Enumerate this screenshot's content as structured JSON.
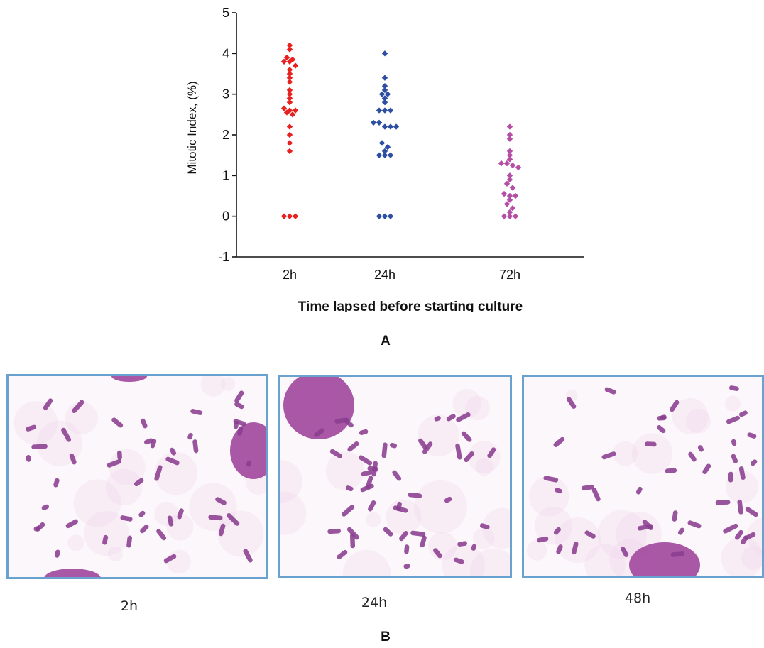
{
  "chart_data": {
    "type": "scatter",
    "title": "",
    "xlabel": "Time lapsed before starting culture",
    "ylabel": "Mitotic Index, (%)",
    "ylim": [
      -1,
      5
    ],
    "yticks": [
      -1,
      0,
      1,
      2,
      3,
      4,
      5
    ],
    "categories": [
      "2h",
      "24h",
      "72h"
    ],
    "grid": false,
    "series": [
      {
        "category": "2h",
        "color": "#e8211f",
        "values": [
          4.2,
          4.1,
          3.9,
          3.85,
          3.8,
          3.8,
          3.7,
          3.6,
          3.5,
          3.4,
          3.3,
          3.1,
          3.0,
          2.9,
          2.8,
          2.65,
          2.6,
          2.6,
          2.55,
          2.5,
          2.2,
          2.0,
          1.8,
          1.6,
          0.0,
          0.0,
          0.0
        ]
      },
      {
        "category": "24h",
        "color": "#2d4fa3",
        "values": [
          4.0,
          3.4,
          3.2,
          3.1,
          3.0,
          3.0,
          2.9,
          2.8,
          2.6,
          2.6,
          2.6,
          2.3,
          2.3,
          2.2,
          2.2,
          2.2,
          1.8,
          1.7,
          1.6,
          1.5,
          1.5,
          1.5,
          0.0,
          0.0,
          0.0
        ]
      },
      {
        "category": "72h",
        "color": "#b44fa5",
        "values": [
          2.2,
          2.0,
          1.9,
          1.6,
          1.5,
          1.4,
          1.3,
          1.3,
          1.25,
          1.2,
          1.0,
          0.9,
          0.8,
          0.7,
          0.55,
          0.5,
          0.5,
          0.4,
          0.3,
          0.2,
          0.1,
          0.0,
          0.0,
          0.0
        ]
      }
    ]
  },
  "panel_a_label": "A",
  "panel_b_label": "B",
  "micrographs": [
    {
      "label": "2h"
    },
    {
      "label": "24h"
    },
    {
      "label": "48h"
    }
  ],
  "colors": {
    "frame": "#6aa2cf",
    "chromosome": "#8a3d8f",
    "nucleus": "#a24a9e"
  }
}
